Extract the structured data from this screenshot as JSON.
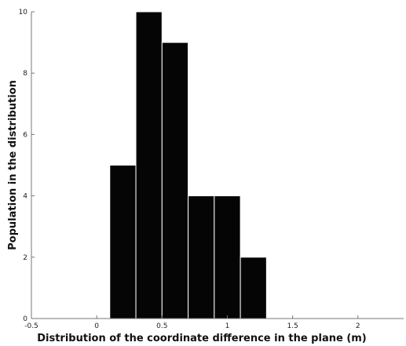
{
  "chart_data": {
    "type": "bar",
    "subtype": "histogram",
    "bins": [
      {
        "x0": 0.1,
        "x1": 0.3,
        "count": 5
      },
      {
        "x0": 0.3,
        "x1": 0.5,
        "count": 10
      },
      {
        "x0": 0.5,
        "x1": 0.7,
        "count": 9
      },
      {
        "x0": 0.7,
        "x1": 0.9,
        "count": 4
      },
      {
        "x0": 0.9,
        "x1": 1.1,
        "count": 4
      },
      {
        "x0": 1.1,
        "x1": 1.3,
        "count": 2
      }
    ],
    "xlabel": "Distribution of the coordinate difference in the plane (m)",
    "ylabel": "Population in the distribution",
    "xlim": [
      -0.5,
      2.35
    ],
    "ylim": [
      0,
      10
    ],
    "xticks": [
      -0.5,
      0,
      0.5,
      1,
      1.5,
      2
    ],
    "xtick_labels": [
      "-0.5",
      "0",
      "0.5",
      "1",
      "1.5",
      "2"
    ],
    "yticks": [
      0,
      2,
      4,
      6,
      8,
      10
    ],
    "ytick_labels": [
      "0",
      "2",
      "4",
      "6",
      "8",
      "10"
    ],
    "bar_color": "#050505",
    "grid": false,
    "legend": false
  }
}
